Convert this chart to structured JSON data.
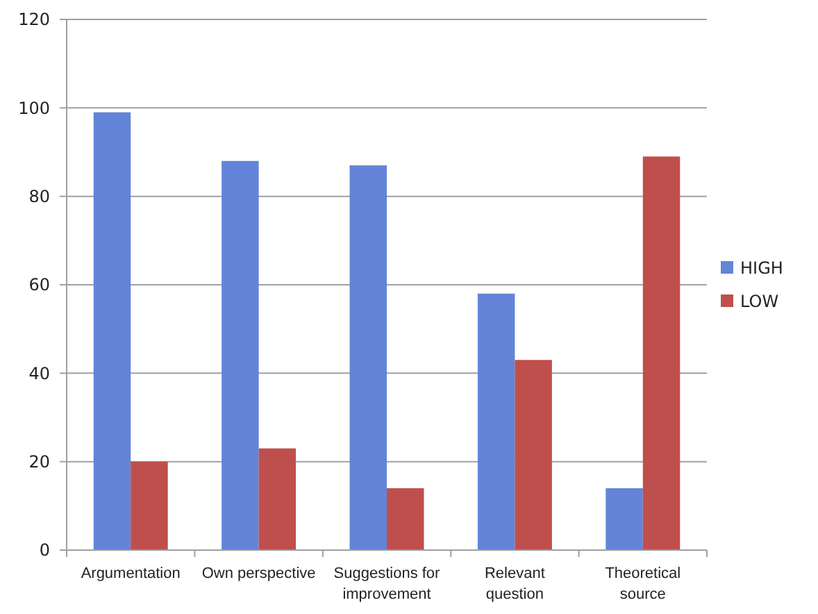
{
  "chart_data": {
    "type": "bar",
    "categories": [
      "Argumentation",
      "Own perspective",
      "Suggestions for improvement",
      "Relevant question",
      "Theoretical source"
    ],
    "series": [
      {
        "name": "HIGH",
        "color": "#6384d8",
        "values": [
          99,
          88,
          87,
          58,
          14
        ]
      },
      {
        "name": "LOW",
        "color": "#bf4f4c",
        "values": [
          20,
          23,
          14,
          43,
          89
        ]
      }
    ],
    "ylim": [
      0,
      120
    ],
    "yticks": [
      0,
      20,
      40,
      60,
      80,
      100,
      120
    ],
    "grid": "y",
    "legend": "right"
  }
}
